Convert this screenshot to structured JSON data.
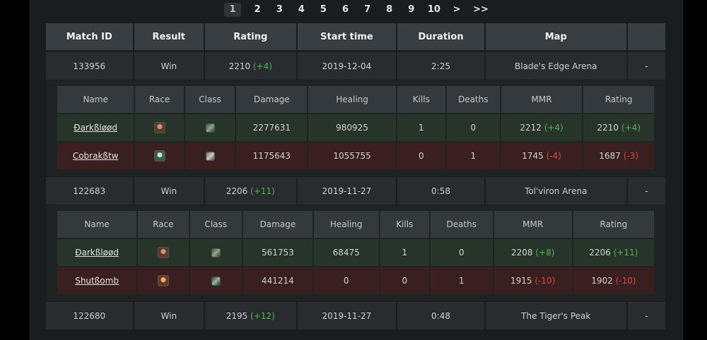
{
  "pagination": {
    "pages": [
      "1",
      "2",
      "3",
      "4",
      "5",
      "6",
      "7",
      "8",
      "9",
      "10"
    ],
    "next": ">",
    "last": ">>",
    "active": "1"
  },
  "headers": [
    "Match ID",
    "Result",
    "Rating",
    "Start time",
    "Duration",
    "Map",
    ""
  ],
  "sub_headers": [
    "Name",
    "Race",
    "Class",
    "Damage",
    "Healing",
    "Kills",
    "Deaths",
    "MMR",
    "Rating"
  ],
  "matches": [
    {
      "id": "133956",
      "result": "Win",
      "rating": "2210",
      "rating_delta": "(+4)",
      "start": "2019-12-04",
      "duration": "2:25",
      "map": "Blade's Edge Arena",
      "extra": "-",
      "players": [
        {
          "name": "Ðarkßløød",
          "race_icon": "race-portrait-icon",
          "class_icon": "class-icon",
          "damage": "2277631",
          "healing": "980925",
          "kills": "1",
          "deaths": "0",
          "mmr": "2212",
          "mmr_delta": "(+4)",
          "rating": "2210",
          "rating_delta": "(+4)",
          "team": "win"
        },
        {
          "name": "Cobrakßtw",
          "race_icon": "race-portrait-icon",
          "class_icon": "class-icon",
          "damage": "1175643",
          "healing": "1055755",
          "kills": "0",
          "deaths": "1",
          "mmr": "1745",
          "mmr_delta": "(-4)",
          "rating": "1687",
          "rating_delta": "(-3)",
          "team": "loss"
        }
      ]
    },
    {
      "id": "122683",
      "result": "Win",
      "rating": "2206",
      "rating_delta": "(+11)",
      "start": "2019-11-27",
      "duration": "0:58",
      "map": "Tol'viron Arena",
      "extra": "-",
      "players": [
        {
          "name": "Ðarkßløød",
          "race_icon": "race-portrait-icon",
          "class_icon": "class-icon",
          "damage": "561753",
          "healing": "68475",
          "kills": "1",
          "deaths": "0",
          "mmr": "2208",
          "mmr_delta": "(+8)",
          "rating": "2206",
          "rating_delta": "(+11)",
          "team": "win"
        },
        {
          "name": "Shutßomb",
          "race_icon": "race-portrait-icon",
          "class_icon": "class-icon",
          "damage": "441214",
          "healing": "0",
          "kills": "0",
          "deaths": "1",
          "mmr": "1915",
          "mmr_delta": "(-10)",
          "rating": "1902",
          "rating_delta": "(-10)",
          "team": "loss"
        }
      ]
    },
    {
      "id": "122680",
      "result": "Win",
      "rating": "2195",
      "rating_delta": "(+12)",
      "start": "2019-11-27",
      "duration": "0:48",
      "map": "The Tiger's Peak",
      "extra": "-"
    }
  ]
}
